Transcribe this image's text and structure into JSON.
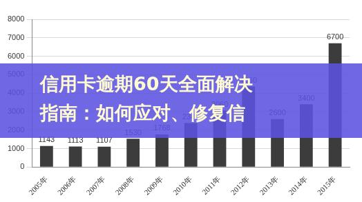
{
  "chart_data": {
    "type": "bar",
    "annotation": [
      "信用卡逾期60天全面解决",
      "指南：如何应对、修复信"
    ],
    "categories": [
      "2005年",
      "2006年",
      "2007年",
      "2008年",
      "2009年",
      "2010年",
      "2011年",
      "2012年",
      "2013年",
      "2014年",
      "2015年"
    ],
    "values": [
      1143,
      1113,
      1107,
      1530,
      1768,
      2380,
      3060,
      4360,
      2600,
      3400,
      6700
    ],
    "color": "#3c3c3c",
    "ylim": [
      0,
      8000
    ],
    "yticks": [
      0,
      1000,
      2000,
      3000,
      4000,
      5000,
      6000,
      7000,
      8000
    ],
    "grid": true,
    "data_labels": true
  }
}
